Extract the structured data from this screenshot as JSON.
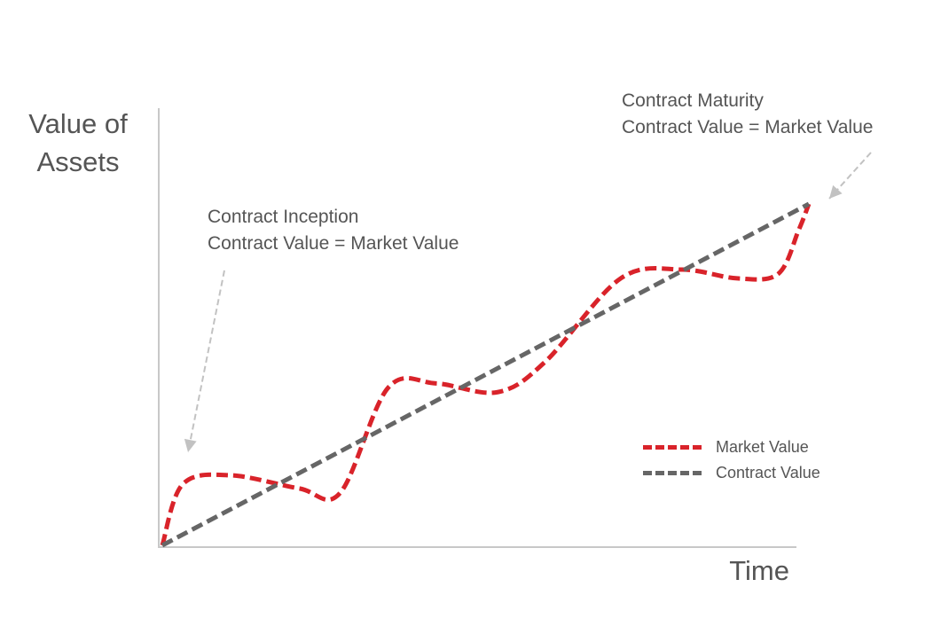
{
  "chart_data": {
    "type": "line",
    "title": "",
    "xlabel": "Time",
    "ylabel": "Value of Assets",
    "axis_ticks": "none",
    "xlim": [
      0,
      10
    ],
    "ylim": [
      0,
      10
    ],
    "grid": false,
    "legend_position": "bottom-right",
    "series": [
      {
        "name": "Market Value",
        "color": "#d9232a",
        "style": "dashed",
        "x": [
          0,
          0.3,
          1.0,
          2.0,
          2.6,
          3.3,
          4.0,
          4.9,
          5.6,
          6.7,
          7.6,
          8.4,
          9.0,
          9.3,
          9.45
        ],
        "y": [
          0,
          1.4,
          1.6,
          1.3,
          1.2,
          3.6,
          3.7,
          3.5,
          4.2,
          6.1,
          6.3,
          6.1,
          6.2,
          7.2,
          7.8
        ]
      },
      {
        "name": "Contract Value",
        "color": "#666666",
        "style": "dashed",
        "x": [
          0,
          9.45
        ],
        "y": [
          0,
          7.8
        ]
      }
    ],
    "annotations": [
      {
        "id": "inception",
        "lines": [
          "Contract Inception",
          "Contract Value = Market Value"
        ],
        "x": 0,
        "y": 0
      },
      {
        "id": "maturity",
        "lines": [
          "Contract Maturity",
          "Contract Value = Market Value"
        ],
        "x": 9.45,
        "y": 7.8
      }
    ]
  },
  "labels": {
    "ylabel_line1": "Value of",
    "ylabel_line2": "Assets",
    "xlabel": "Time",
    "inception_line1": "Contract Inception",
    "inception_line2": "Contract Value = Market Value",
    "maturity_line1": "Contract Maturity",
    "maturity_line2": "Contract Value = Market Value",
    "legend_market": "Market Value",
    "legend_contract": "Contract Value"
  },
  "colors": {
    "market": "#d9232a",
    "contract": "#666666",
    "axis": "#c8c8c8",
    "arrow": "#c2c2c2",
    "text": "#555555"
  }
}
